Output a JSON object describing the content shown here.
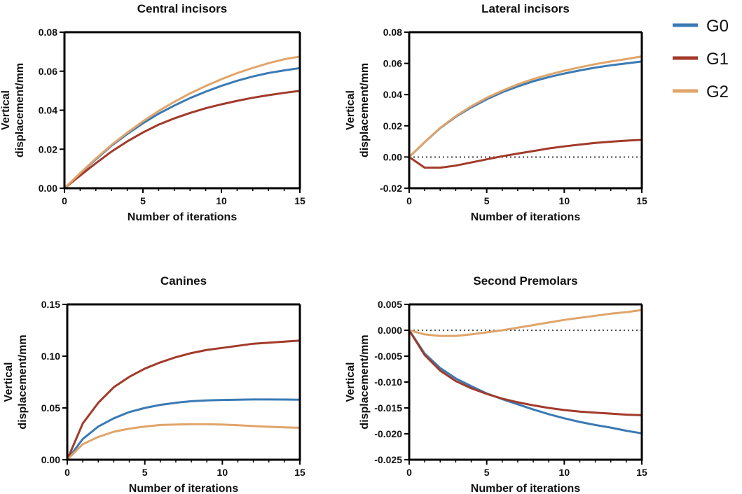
{
  "legend": [
    {
      "name": "G0",
      "color": "#3a7ab5"
    },
    {
      "name": "G1",
      "color": "#a23a2a"
    },
    {
      "name": "G2",
      "color": "#e0a46a"
    }
  ],
  "chart_data": [
    {
      "type": "line",
      "title": "Central incisors",
      "xlabel": "Number of iterations",
      "ylabel": [
        "Vertical",
        "displacement/mm"
      ],
      "xlim": [
        0,
        15
      ],
      "ylim": [
        0,
        0.08
      ],
      "xticks": [
        0,
        5,
        10,
        15
      ],
      "xtick_labels": [
        "0",
        "5",
        "10",
        "15"
      ],
      "yticks": [
        0,
        0.02,
        0.04,
        0.06,
        0.08
      ],
      "ytick_labels": [
        "0.00",
        "0.02",
        "0.04",
        "0.06",
        "0.08"
      ],
      "zero_line": false,
      "x": [
        0,
        1,
        2,
        3,
        4,
        5,
        6,
        7,
        8,
        9,
        10,
        11,
        12,
        13,
        14,
        15
      ],
      "series": [
        {
          "name": "G0",
          "values": [
            0,
            0.0075,
            0.0148,
            0.0218,
            0.0278,
            0.0333,
            0.0382,
            0.0424,
            0.0462,
            0.0495,
            0.0525,
            0.0551,
            0.0573,
            0.0591,
            0.0604,
            0.0616
          ]
        },
        {
          "name": "G1",
          "values": [
            0,
            0.0065,
            0.0128,
            0.0188,
            0.024,
            0.0286,
            0.0326,
            0.0358,
            0.0386,
            0.041,
            0.043,
            0.0448,
            0.0464,
            0.0477,
            0.0489,
            0.0499
          ]
        },
        {
          "name": "G2",
          "values": [
            0,
            0.0077,
            0.0152,
            0.0222,
            0.0285,
            0.0343,
            0.0396,
            0.0443,
            0.0486,
            0.0524,
            0.0559,
            0.059,
            0.0617,
            0.0641,
            0.0661,
            0.0675
          ]
        }
      ]
    },
    {
      "type": "line",
      "title": "Lateral incisors",
      "xlabel": "Number of iterations",
      "ylabel": [
        "Vertical",
        "displacement/mm"
      ],
      "xlim": [
        0,
        15
      ],
      "ylim": [
        -0.02,
        0.08
      ],
      "xticks": [
        0,
        5,
        10,
        15
      ],
      "xtick_labels": [
        "0",
        "5",
        "10",
        "15"
      ],
      "yticks": [
        -0.02,
        0,
        0.02,
        0.04,
        0.06,
        0.08
      ],
      "ytick_labels": [
        "-0.02",
        "0.00",
        "0.02",
        "0.04",
        "0.06",
        "0.08"
      ],
      "zero_line": true,
      "x": [
        0,
        1,
        2,
        3,
        4,
        5,
        6,
        7,
        8,
        9,
        10,
        11,
        12,
        13,
        14,
        15
      ],
      "series": [
        {
          "name": "G0",
          "values": [
            0,
            0.0095,
            0.0185,
            0.0258,
            0.0318,
            0.037,
            0.0415,
            0.0452,
            0.0485,
            0.0512,
            0.0535,
            0.0555,
            0.0573,
            0.0588,
            0.06,
            0.0612
          ]
        },
        {
          "name": "G1",
          "values": [
            0,
            -0.0068,
            -0.0068,
            -0.0055,
            -0.0035,
            -0.0015,
            0.0005,
            0.0022,
            0.0038,
            0.0055,
            0.0068,
            0.008,
            0.009,
            0.0098,
            0.0105,
            0.011
          ]
        },
        {
          "name": "G2",
          "values": [
            0,
            0.0096,
            0.0187,
            0.0262,
            0.0325,
            0.038,
            0.0425,
            0.0465,
            0.05,
            0.0528,
            0.0553,
            0.0575,
            0.0595,
            0.0612,
            0.0628,
            0.0645
          ]
        }
      ]
    },
    {
      "type": "line",
      "title": "Canines",
      "xlabel": "Number of iterations",
      "ylabel": [
        "Vertical",
        "displacement/mm"
      ],
      "xlim": [
        0,
        15
      ],
      "ylim": [
        0,
        0.15
      ],
      "xticks": [
        0,
        5,
        10,
        15
      ],
      "xtick_labels": [
        "0",
        "5",
        "10",
        "15"
      ],
      "yticks": [
        0,
        0.05,
        0.1,
        0.15
      ],
      "ytick_labels": [
        "0.00",
        "0.05",
        "0.10",
        "0.15"
      ],
      "zero_line": false,
      "x": [
        0,
        1,
        2,
        3,
        4,
        5,
        6,
        7,
        8,
        9,
        10,
        11,
        12,
        13,
        14,
        15
      ],
      "series": [
        {
          "name": "G0",
          "values": [
            0,
            0.02,
            0.032,
            0.04,
            0.046,
            0.05,
            0.053,
            0.055,
            0.0565,
            0.0572,
            0.0577,
            0.058,
            0.0582,
            0.0582,
            0.0581,
            0.058
          ]
        },
        {
          "name": "G1",
          "values": [
            0,
            0.035,
            0.055,
            0.07,
            0.08,
            0.088,
            0.094,
            0.099,
            0.103,
            0.106,
            0.108,
            0.11,
            0.112,
            0.113,
            0.114,
            0.115
          ]
        },
        {
          "name": "G2",
          "values": [
            0,
            0.015,
            0.022,
            0.027,
            0.03,
            0.032,
            0.0335,
            0.034,
            0.0343,
            0.0343,
            0.034,
            0.0333,
            0.0325,
            0.0318,
            0.0312,
            0.0308
          ]
        }
      ]
    },
    {
      "type": "line",
      "title": "Second Premolars",
      "xlabel": "Number of iterations",
      "ylabel": [
        "Vertical",
        "displacement/mm"
      ],
      "xlim": [
        0,
        15
      ],
      "ylim": [
        -0.025,
        0.005
      ],
      "xticks": [
        0,
        5,
        10,
        15
      ],
      "xtick_labels": [
        "0",
        "5",
        "10",
        "15"
      ],
      "yticks": [
        -0.025,
        -0.02,
        -0.015,
        -0.01,
        -0.005,
        0,
        0.005
      ],
      "ytick_labels": [
        "-0.025",
        "-0.020",
        "-0.015",
        "-0.010",
        "-0.005",
        "0.000",
        "0.005"
      ],
      "zero_line": true,
      "x": [
        0,
        1,
        2,
        3,
        4,
        5,
        6,
        7,
        8,
        9,
        10,
        11,
        12,
        13,
        14,
        15
      ],
      "series": [
        {
          "name": "G0",
          "values": [
            0,
            -0.0045,
            -0.0073,
            -0.0093,
            -0.0108,
            -0.0122,
            -0.0133,
            -0.0143,
            -0.0153,
            -0.0162,
            -0.017,
            -0.0177,
            -0.0183,
            -0.0188,
            -0.0194,
            -0.0199
          ]
        },
        {
          "name": "G1",
          "values": [
            0,
            -0.0048,
            -0.0078,
            -0.0098,
            -0.0112,
            -0.0123,
            -0.0132,
            -0.0139,
            -0.0145,
            -0.015,
            -0.0154,
            -0.0157,
            -0.0159,
            -0.0161,
            -0.0163,
            -0.0164
          ]
        },
        {
          "name": "G2",
          "values": [
            0,
            -0.0008,
            -0.0011,
            -0.0011,
            -0.0008,
            -0.0004,
            0.0,
            0.0005,
            0.001,
            0.0015,
            0.002,
            0.0024,
            0.0028,
            0.0032,
            0.0035,
            0.0039
          ]
        }
      ]
    }
  ]
}
